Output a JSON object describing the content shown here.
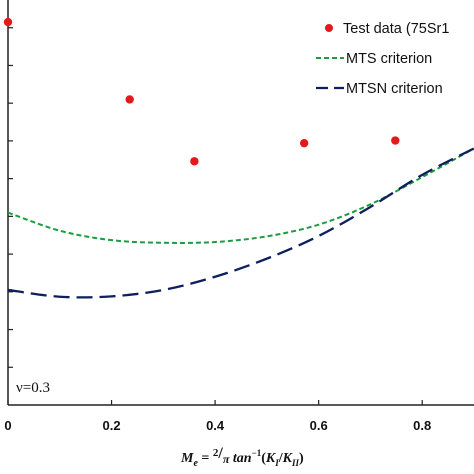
{
  "chart_data": {
    "type": "scatter",
    "xlim": [
      0.0,
      0.9
    ],
    "ylim": [
      0.0,
      1.1
    ],
    "x_ticks": [
      0,
      0.2,
      0.4,
      0.6,
      0.8
    ],
    "x_tick_labels": [
      "0",
      "0.2",
      "0.4",
      "0.6",
      "0.8"
    ],
    "y_ticks": [
      0.1,
      0.2,
      0.3,
      0.4,
      0.5,
      0.6,
      0.7,
      0.8,
      0.9,
      1.0,
      1.1
    ],
    "grid": false,
    "legend_position": "top-right",
    "xlabel": {
      "main": "M",
      "sub": "e",
      "eq": " = ",
      "num": "2",
      "slash": "/",
      "den": "π",
      "fn": " tan",
      "sup": "−1",
      "paren_open": "(",
      "k1": "K",
      "k1_sub": "I",
      "div": "/",
      "k2": "K",
      "k2_sub": "II",
      "paren_close": ")"
    },
    "annotation": "ν=0.3",
    "series": [
      {
        "name": "Test data (75Sr1",
        "kind": "points",
        "color": "#e31a1c",
        "x": [
          0.0,
          0.235,
          0.36,
          0.572,
          0.748
        ],
        "y": [
          1.015,
          0.81,
          0.646,
          0.694,
          0.701
        ]
      },
      {
        "name": "MTS criterion",
        "kind": "line",
        "color": "#1a9e3f",
        "dash": "short",
        "x": [
          0.0,
          0.1,
          0.2,
          0.3,
          0.4,
          0.5,
          0.6,
          0.7,
          0.8,
          0.9
        ],
        "y": [
          0.51,
          0.462,
          0.437,
          0.43,
          0.432,
          0.447,
          0.478,
          0.532,
          0.604,
          0.68
        ]
      },
      {
        "name": "MTSN criterion",
        "kind": "line",
        "color": "#0d1f5c",
        "dash": "long",
        "x": [
          0.0,
          0.1,
          0.2,
          0.3,
          0.4,
          0.5,
          0.6,
          0.7,
          0.8,
          0.9
        ],
        "y": [
          0.305,
          0.287,
          0.288,
          0.305,
          0.34,
          0.388,
          0.448,
          0.525,
          0.61,
          0.68
        ]
      }
    ]
  }
}
